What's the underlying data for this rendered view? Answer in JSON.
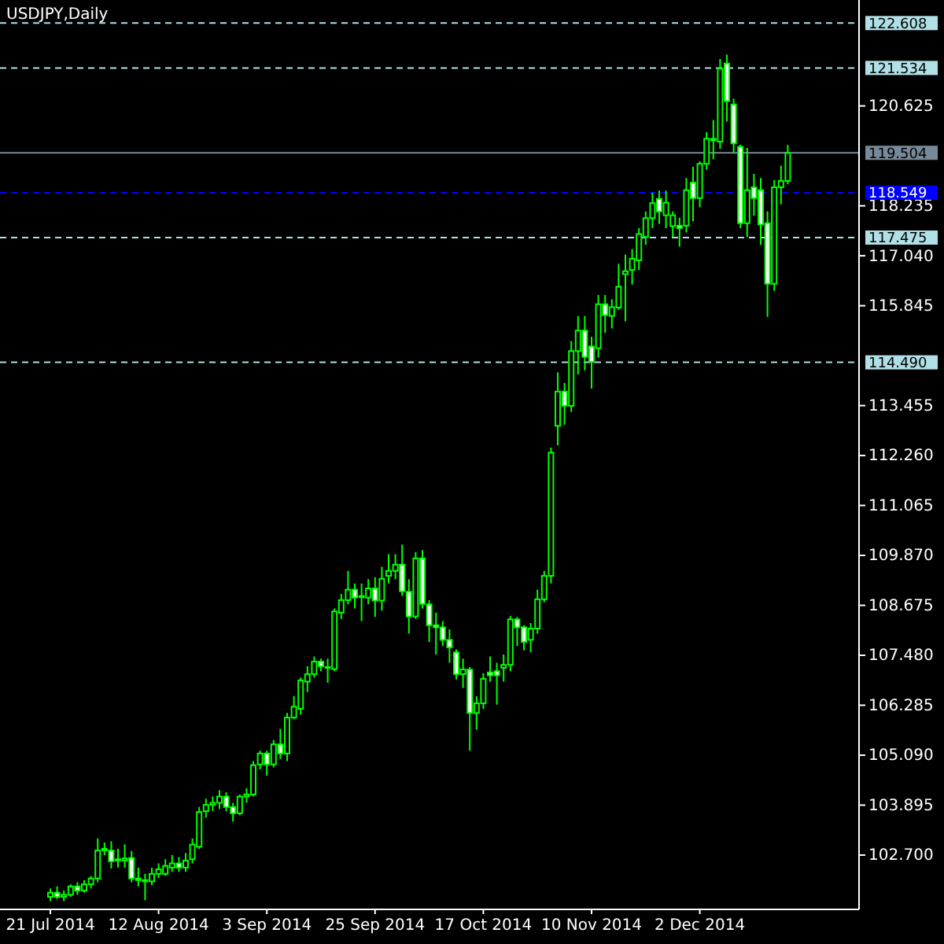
{
  "chart_data": {
    "type": "candlestick",
    "title": "USDJPY,Daily",
    "color": "#00ff00",
    "categories": [
      "21 Jul 2014",
      null,
      null,
      null,
      null,
      null,
      null,
      null,
      null,
      null,
      null,
      null,
      null,
      null,
      null,
      null,
      "12 Aug 2014",
      null,
      null,
      null,
      null,
      null,
      null,
      null,
      null,
      null,
      null,
      null,
      null,
      null,
      null,
      null,
      "3 Sep 2014",
      null,
      null,
      null,
      null,
      null,
      null,
      null,
      null,
      null,
      null,
      null,
      null,
      null,
      null,
      null,
      "25 Sep 2014",
      null,
      null,
      null,
      null,
      null,
      null,
      null,
      null,
      null,
      null,
      null,
      null,
      null,
      null,
      null,
      "17 Oct 2014",
      null,
      null,
      null,
      null,
      null,
      null,
      null,
      null,
      null,
      null,
      null,
      null,
      null,
      null,
      null,
      "10 Nov 2014",
      null,
      null,
      null,
      null,
      null,
      null,
      null,
      null,
      null,
      null,
      null,
      null,
      null,
      null,
      null,
      "2 Dec 2014",
      null,
      null,
      null,
      null,
      null,
      null,
      null,
      null,
      null,
      null,
      null,
      null,
      null
    ],
    "ohlc": [
      [
        101.7,
        101.9,
        101.6,
        101.8
      ],
      [
        101.8,
        101.95,
        101.65,
        101.7
      ],
      [
        101.7,
        101.85,
        101.6,
        101.75
      ],
      [
        101.75,
        102.0,
        101.7,
        101.95
      ],
      [
        101.95,
        102.05,
        101.75,
        101.85
      ],
      [
        101.85,
        102.1,
        101.8,
        102.0
      ],
      [
        102.0,
        102.2,
        101.9,
        102.14
      ],
      [
        102.14,
        103.1,
        102.05,
        102.81
      ],
      [
        102.81,
        103.0,
        102.7,
        102.85
      ],
      [
        102.81,
        103.03,
        102.38,
        102.55
      ],
      [
        102.6,
        102.85,
        102.4,
        102.57
      ],
      [
        102.57,
        102.96,
        102.4,
        102.62
      ],
      [
        102.63,
        102.8,
        102.05,
        102.14
      ],
      [
        102.14,
        102.4,
        101.95,
        102.1
      ],
      [
        102.1,
        102.25,
        101.62,
        102.07
      ],
      [
        102.07,
        102.4,
        101.98,
        102.25
      ],
      [
        102.25,
        102.5,
        102.15,
        102.36
      ],
      [
        102.25,
        102.6,
        102.2,
        102.44
      ],
      [
        102.4,
        102.7,
        102.3,
        102.5
      ],
      [
        102.5,
        102.65,
        102.3,
        102.4
      ],
      [
        102.4,
        102.75,
        102.3,
        102.57
      ],
      [
        102.6,
        103.1,
        102.5,
        102.95
      ],
      [
        102.9,
        103.85,
        102.85,
        103.73
      ],
      [
        103.75,
        104.05,
        103.6,
        103.9
      ],
      [
        103.9,
        104.1,
        103.75,
        103.95
      ],
      [
        103.95,
        104.25,
        103.8,
        104.1
      ],
      [
        104.1,
        104.2,
        103.75,
        103.85
      ],
      [
        103.85,
        103.95,
        103.5,
        103.7
      ],
      [
        103.7,
        104.15,
        103.65,
        104.1
      ],
      [
        104.1,
        104.3,
        103.95,
        104.15
      ],
      [
        104.15,
        104.95,
        104.1,
        104.85
      ],
      [
        104.87,
        105.2,
        104.75,
        105.13
      ],
      [
        105.13,
        105.2,
        104.6,
        104.87
      ],
      [
        104.87,
        105.45,
        104.8,
        105.35
      ],
      [
        105.35,
        105.72,
        105.0,
        105.13
      ],
      [
        105.13,
        106.1,
        104.95,
        105.99
      ],
      [
        105.99,
        106.5,
        105.95,
        106.25
      ],
      [
        106.2,
        106.95,
        106.06,
        106.88
      ],
      [
        106.85,
        107.22,
        106.6,
        107.03
      ],
      [
        107.03,
        107.45,
        106.95,
        107.33
      ],
      [
        107.33,
        107.4,
        107.1,
        107.22
      ],
      [
        107.2,
        107.4,
        106.82,
        107.18
      ],
      [
        107.15,
        108.6,
        107.1,
        108.53
      ],
      [
        108.5,
        108.95,
        108.35,
        108.8
      ],
      [
        108.8,
        109.5,
        108.7,
        109.05
      ],
      [
        109.05,
        109.2,
        108.6,
        108.86
      ],
      [
        108.87,
        109.2,
        108.3,
        108.9
      ],
      [
        108.86,
        109.3,
        108.7,
        109.08
      ],
      [
        109.08,
        109.35,
        108.4,
        108.79
      ],
      [
        108.79,
        109.6,
        108.55,
        109.31
      ],
      [
        109.38,
        109.9,
        109.2,
        109.5
      ],
      [
        109.5,
        109.9,
        109.3,
        109.65
      ],
      [
        109.65,
        110.13,
        108.9,
        109.01
      ],
      [
        109.0,
        109.3,
        108.0,
        108.41
      ],
      [
        108.41,
        109.95,
        108.35,
        109.8
      ],
      [
        109.8,
        110.0,
        108.6,
        108.71
      ],
      [
        108.7,
        108.8,
        107.8,
        108.2
      ],
      [
        108.2,
        108.5,
        107.5,
        108.15
      ],
      [
        108.15,
        108.3,
        107.7,
        107.85
      ],
      [
        107.85,
        108.1,
        107.3,
        107.67
      ],
      [
        107.55,
        107.62,
        106.9,
        107.03
      ],
      [
        107.03,
        107.4,
        106.7,
        107.14
      ],
      [
        107.14,
        107.2,
        105.2,
        106.1
      ],
      [
        106.1,
        106.5,
        105.7,
        106.33
      ],
      [
        106.33,
        107.05,
        106.2,
        106.92
      ],
      [
        107.07,
        107.45,
        106.85,
        107.0
      ],
      [
        107.1,
        107.3,
        106.3,
        107.0
      ],
      [
        107.18,
        107.5,
        106.85,
        107.25
      ],
      [
        107.25,
        108.42,
        107.1,
        108.34
      ],
      [
        108.34,
        108.4,
        107.7,
        108.15
      ],
      [
        108.15,
        108.2,
        107.6,
        107.8
      ],
      [
        107.85,
        108.25,
        107.55,
        108.12
      ],
      [
        108.12,
        109.05,
        108.0,
        108.82
      ],
      [
        108.82,
        109.5,
        108.75,
        109.38
      ],
      [
        109.38,
        112.45,
        109.2,
        112.33
      ],
      [
        112.97,
        114.25,
        112.5,
        113.79
      ],
      [
        113.79,
        114.0,
        113.0,
        113.45
      ],
      [
        113.45,
        115.0,
        113.3,
        114.76
      ],
      [
        114.76,
        115.6,
        114.2,
        115.25
      ],
      [
        115.25,
        115.6,
        114.3,
        114.62
      ],
      [
        114.87,
        115.1,
        113.86,
        114.5
      ],
      [
        114.83,
        116.1,
        114.6,
        115.88
      ],
      [
        115.88,
        116.1,
        115.2,
        115.62
      ],
      [
        115.6,
        116.0,
        115.3,
        115.81
      ],
      [
        115.8,
        116.85,
        115.75,
        116.3
      ],
      [
        116.6,
        117.07,
        115.47,
        116.67
      ],
      [
        116.7,
        117.2,
        116.35,
        116.97
      ],
      [
        116.93,
        117.7,
        116.7,
        117.56
      ],
      [
        117.49,
        118.1,
        117.3,
        117.94
      ],
      [
        117.94,
        118.55,
        117.7,
        118.3
      ],
      [
        118.4,
        118.6,
        117.8,
        118.1
      ],
      [
        118.01,
        118.6,
        117.7,
        118.31
      ],
      [
        117.75,
        118.1,
        117.49,
        118.01
      ],
      [
        117.76,
        117.95,
        117.26,
        117.7
      ],
      [
        117.76,
        118.9,
        117.6,
        118.61
      ],
      [
        118.79,
        119.17,
        117.86,
        118.42
      ],
      [
        118.42,
        119.3,
        118.2,
        119.24
      ],
      [
        119.24,
        120.0,
        119.1,
        119.84
      ],
      [
        119.84,
        120.29,
        119.35,
        119.8
      ],
      [
        119.77,
        121.75,
        119.6,
        121.52
      ],
      [
        121.64,
        121.85,
        120.25,
        120.74
      ],
      [
        120.66,
        120.8,
        119.5,
        119.73
      ],
      [
        119.65,
        119.7,
        117.7,
        117.82
      ],
      [
        117.82,
        119.62,
        117.49,
        118.61
      ],
      [
        118.68,
        119.0,
        118.0,
        118.42
      ],
      [
        118.61,
        118.9,
        117.3,
        117.79
      ],
      [
        117.82,
        118.1,
        115.58,
        116.37
      ],
      [
        116.37,
        118.85,
        116.2,
        118.68
      ],
      [
        118.68,
        119.2,
        118.27,
        118.83
      ],
      [
        118.83,
        119.69,
        118.75,
        119.5
      ]
    ],
    "ylim": [
      101.4,
      123.16
    ],
    "yticks": [
      {
        "value": 102.7,
        "label": "102.700"
      },
      103.895,
      {
        "value": 105.09,
        "label": "105.090"
      },
      106.285,
      {
        "value": 107.48,
        "label": "107.480"
      },
      108.675,
      {
        "value": 109.87,
        "label": "109.870"
      },
      111.065,
      {
        "value": 112.26,
        "label": "112.260"
      },
      113.455,
      115.845,
      {
        "value": 117.04,
        "label": "117.040"
      },
      118.235,
      120.625
    ],
    "ref_lines": [
      {
        "axis": "y",
        "value": 122.608,
        "label": "122.608",
        "color": "#b0e0e6",
        "line_style": "dashed"
      },
      {
        "axis": "y",
        "value": 121.534,
        "label": "121.534",
        "color": "#b0e0e6",
        "line_style": "dashed"
      },
      {
        "axis": "y",
        "value": 119.504,
        "label": "119.504",
        "color": "#778899",
        "line_style": "solid"
      },
      {
        "axis": "y",
        "value": 118.549,
        "label": "118.549",
        "color": "#0000ff",
        "line_style": "dashed"
      },
      {
        "axis": "y",
        "value": 117.475,
        "label": "117.475",
        "color": "#b0e0e6",
        "line_style": "dashed"
      },
      {
        "axis": "y",
        "value": 114.49,
        "label": "114.490",
        "color": "#b0e0e6",
        "line_style": "dashed"
      }
    ],
    "grid": false
  }
}
